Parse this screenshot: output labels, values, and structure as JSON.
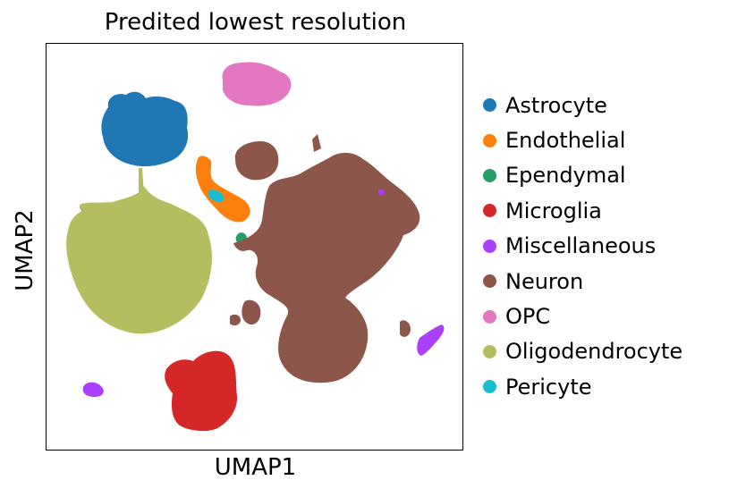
{
  "chart_data": {
    "type": "scatter",
    "title": "Predited lowest resolution",
    "xlabel": "UMAP1",
    "ylabel": "UMAP2",
    "x_ticks": false,
    "y_ticks": false,
    "grid": false,
    "legend_placement": "right",
    "series": [
      {
        "name": "Astrocyte",
        "color": "#1f77b4"
      },
      {
        "name": "Endothelial",
        "color": "#ff7f0e"
      },
      {
        "name": "Ependymal",
        "color": "#279e68"
      },
      {
        "name": "Microglia",
        "color": "#d62728"
      },
      {
        "name": "Miscellaneous",
        "color": "#aa40fc"
      },
      {
        "name": "Neuron",
        "color": "#8c564b"
      },
      {
        "name": "OPC",
        "color": "#e377c2"
      },
      {
        "name": "Oligodendrocyte",
        "color": "#b5bd61"
      },
      {
        "name": "Pericyte",
        "color": "#17becf"
      }
    ]
  }
}
